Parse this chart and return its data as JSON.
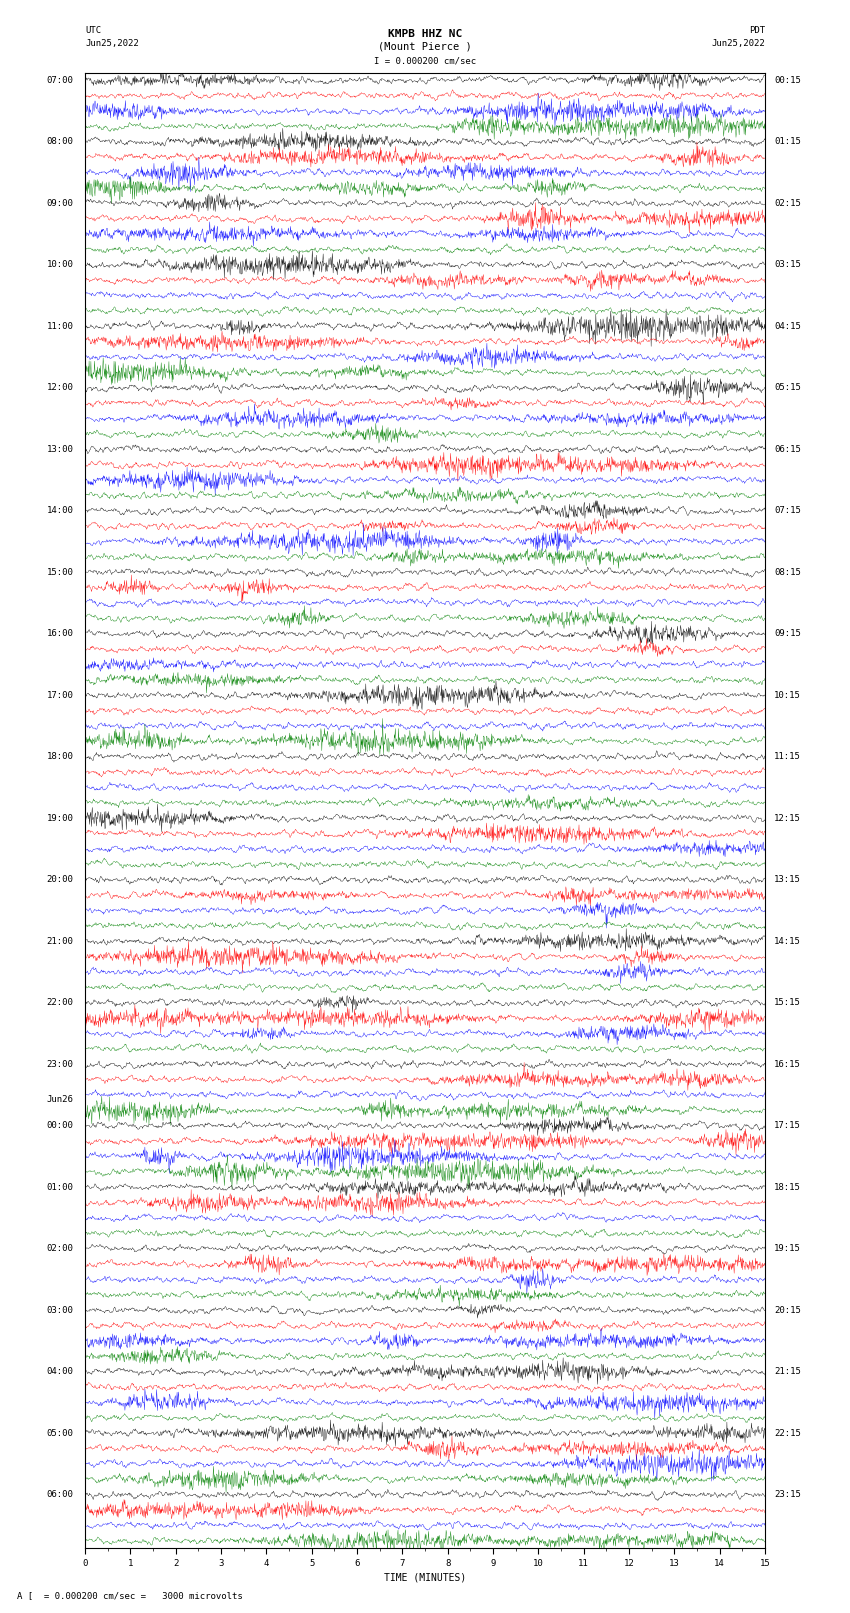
{
  "title_line1": "KMPB HHZ NC",
  "title_line2": "(Mount Pierce )",
  "scale_label": "I = 0.000200 cm/sec",
  "bottom_label": "A [  = 0.000200 cm/sec =   3000 microvolts",
  "xlabel": "TIME (MINUTES)",
  "utc_label": "UTC",
  "utc_date": "Jun25,2022",
  "pdt_label": "PDT",
  "pdt_date": "Jun25,2022",
  "left_labels": [
    {
      "text": "07:00",
      "row": 0
    },
    {
      "text": "08:00",
      "row": 4
    },
    {
      "text": "09:00",
      "row": 8
    },
    {
      "text": "10:00",
      "row": 12
    },
    {
      "text": "11:00",
      "row": 16
    },
    {
      "text": "12:00",
      "row": 20
    },
    {
      "text": "13:00",
      "row": 24
    },
    {
      "text": "14:00",
      "row": 28
    },
    {
      "text": "15:00",
      "row": 32
    },
    {
      "text": "16:00",
      "row": 36
    },
    {
      "text": "17:00",
      "row": 40
    },
    {
      "text": "18:00",
      "row": 44
    },
    {
      "text": "19:00",
      "row": 48
    },
    {
      "text": "20:00",
      "row": 52
    },
    {
      "text": "21:00",
      "row": 56
    },
    {
      "text": "22:00",
      "row": 60
    },
    {
      "text": "23:00",
      "row": 64
    },
    {
      "text": "Jun26",
      "row": 67
    },
    {
      "text": "00:00",
      "row": 68
    },
    {
      "text": "01:00",
      "row": 72
    },
    {
      "text": "02:00",
      "row": 76
    },
    {
      "text": "03:00",
      "row": 80
    },
    {
      "text": "04:00",
      "row": 84
    },
    {
      "text": "05:00",
      "row": 88
    },
    {
      "text": "06:00",
      "row": 92
    }
  ],
  "right_labels": [
    {
      "text": "00:15",
      "row": 0
    },
    {
      "text": "01:15",
      "row": 4
    },
    {
      "text": "02:15",
      "row": 8
    },
    {
      "text": "03:15",
      "row": 12
    },
    {
      "text": "04:15",
      "row": 16
    },
    {
      "text": "05:15",
      "row": 20
    },
    {
      "text": "06:15",
      "row": 24
    },
    {
      "text": "07:15",
      "row": 28
    },
    {
      "text": "08:15",
      "row": 32
    },
    {
      "text": "09:15",
      "row": 36
    },
    {
      "text": "10:15",
      "row": 40
    },
    {
      "text": "11:15",
      "row": 44
    },
    {
      "text": "12:15",
      "row": 48
    },
    {
      "text": "13:15",
      "row": 52
    },
    {
      "text": "14:15",
      "row": 56
    },
    {
      "text": "15:15",
      "row": 60
    },
    {
      "text": "16:15",
      "row": 64
    },
    {
      "text": "17:15",
      "row": 68
    },
    {
      "text": "18:15",
      "row": 72
    },
    {
      "text": "19:15",
      "row": 76
    },
    {
      "text": "20:15",
      "row": 80
    },
    {
      "text": "21:15",
      "row": 84
    },
    {
      "text": "22:15",
      "row": 88
    },
    {
      "text": "23:15",
      "row": 92
    }
  ],
  "trace_colors": [
    "black",
    "red",
    "blue",
    "green"
  ],
  "n_rows": 96,
  "n_minutes": 15,
  "noise_seed": 42,
  "fig_width": 8.5,
  "fig_height": 16.13,
  "dpi": 100,
  "bg_color": "white",
  "font_size": 6.5,
  "title_font_size": 8
}
